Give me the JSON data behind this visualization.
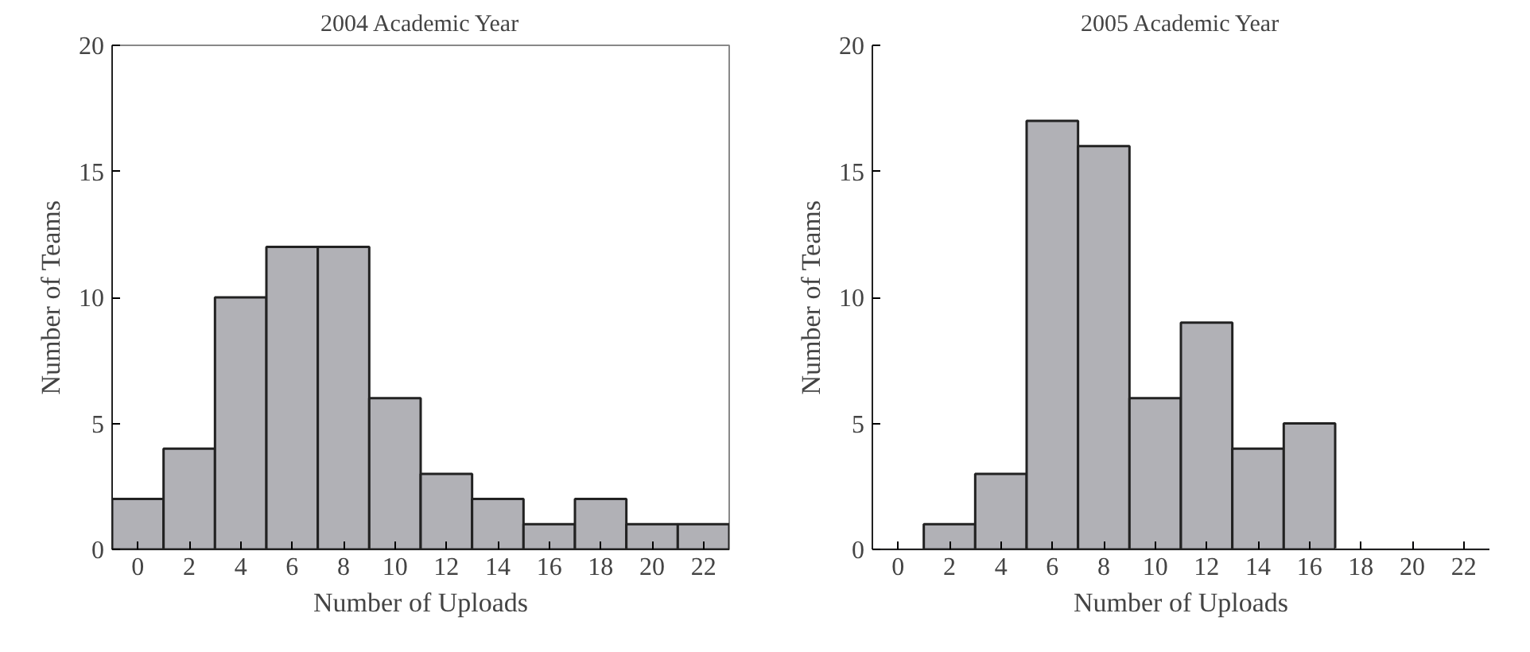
{
  "chart_data": [
    {
      "type": "histogram",
      "title": "2004 Academic Year",
      "xlabel": "Number of Uploads",
      "ylabel": "Number of Teams",
      "bins": [
        -1,
        1,
        3,
        5,
        7,
        9,
        11,
        13,
        15,
        17,
        19,
        21,
        23
      ],
      "values": [
        2,
        4,
        10,
        12,
        12,
        6,
        3,
        2,
        1,
        2,
        1,
        1
      ],
      "color": "#b1b1b6",
      "xlim": [
        -1,
        23
      ],
      "xticks": [
        0,
        2,
        4,
        6,
        8,
        10,
        12,
        14,
        16,
        18,
        20,
        22
      ],
      "ylim": [
        0,
        20
      ],
      "yticks": [
        0,
        5,
        10,
        15,
        20
      ]
    },
    {
      "type": "histogram",
      "title": "2005 Academic Year",
      "xlabel": "Number of Uploads",
      "ylabel": "Number of Teams",
      "bins": [
        -1,
        1,
        3,
        5,
        7,
        9,
        11,
        13,
        15,
        17,
        19,
        21,
        23
      ],
      "values": [
        0,
        1,
        3,
        17,
        16,
        6,
        9,
        4,
        5,
        0,
        0,
        0
      ],
      "color": "#b1b1b6",
      "xlim": [
        -1,
        23
      ],
      "xticks": [
        0,
        2,
        4,
        6,
        8,
        10,
        12,
        14,
        16,
        18,
        20,
        22
      ],
      "ylim": [
        0,
        20
      ],
      "yticks": [
        0,
        5,
        10,
        15,
        20
      ]
    }
  ]
}
